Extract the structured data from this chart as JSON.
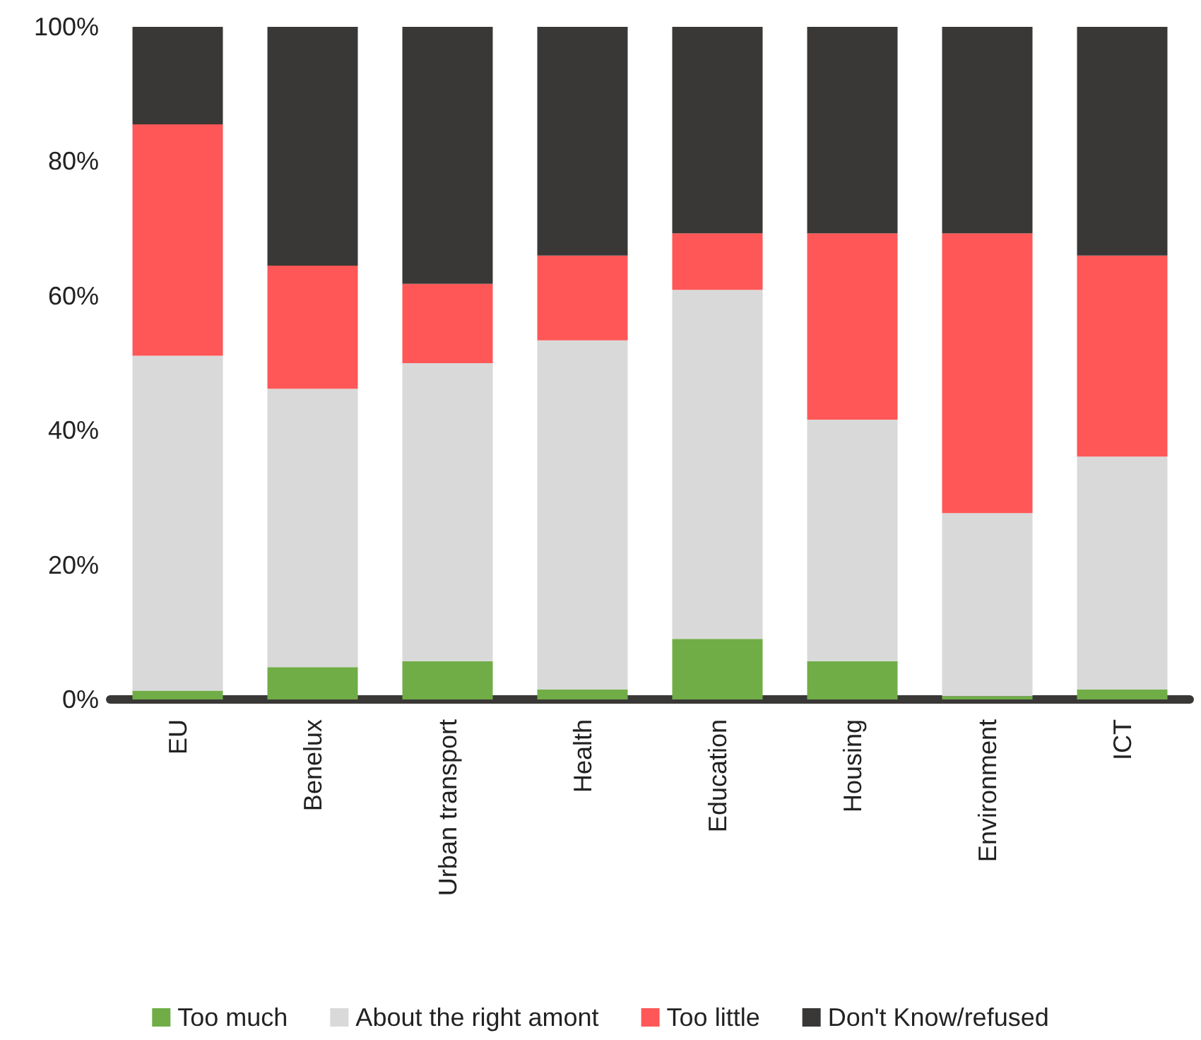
{
  "chart_data": {
    "type": "bar",
    "stacked": true,
    "categories": [
      "EU",
      "Benelux",
      "Urban transport",
      "Health",
      "Education",
      "Housing",
      "Environment",
      "ICT"
    ],
    "series": [
      {
        "name": "Too much",
        "color": "#70ad47",
        "values": [
          1.3,
          4.8,
          5.7,
          1.5,
          9.0,
          5.7,
          0.5,
          1.5
        ]
      },
      {
        "name": "About the right amont",
        "color": "#d9d9d9",
        "values": [
          49.8,
          41.4,
          44.3,
          51.9,
          51.9,
          35.9,
          27.2,
          34.6
        ]
      },
      {
        "name": "Too little",
        "color": "#ff5757",
        "values": [
          34.4,
          18.3,
          11.8,
          12.6,
          8.4,
          27.7,
          41.6,
          29.9
        ]
      },
      {
        "name": "Don't Know/refused",
        "color": "#3a3836",
        "values": [
          14.5,
          35.5,
          38.2,
          34.0,
          30.7,
          30.7,
          30.7,
          34.0
        ]
      }
    ],
    "ylim": [
      0,
      100
    ],
    "yticks": [
      {
        "value": 0,
        "label": "0%"
      },
      {
        "value": 20,
        "label": "20%"
      },
      {
        "value": 40,
        "label": "40%"
      },
      {
        "value": 60,
        "label": "60%"
      },
      {
        "value": 80,
        "label": "80%"
      },
      {
        "value": 100,
        "label": "100%"
      }
    ],
    "grid": false,
    "legend": "bottom"
  }
}
